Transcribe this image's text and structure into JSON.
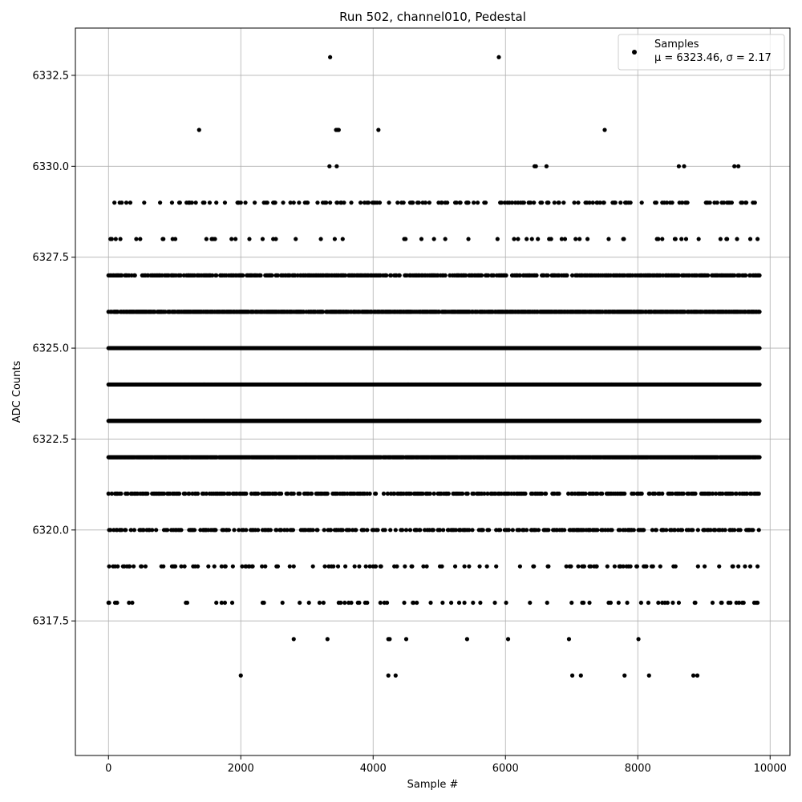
{
  "chart_data": {
    "type": "scatter",
    "title": "Run 502, channel010, Pedestal",
    "xlabel": "Sample #",
    "ylabel": "ADC Counts",
    "xlim": [
      -500,
      10300
    ],
    "ylim": [
      6313.8,
      6333.8
    ],
    "xticks": [
      0,
      2000,
      4000,
      6000,
      8000,
      10000
    ],
    "xtick_labels": [
      "0",
      "2000",
      "4000",
      "6000",
      "8000",
      "10000"
    ],
    "yticks": [
      6317.5,
      6320.0,
      6322.5,
      6325.0,
      6327.5,
      6330.0,
      6332.5
    ],
    "ytick_labels": [
      "6317.5",
      "6320.0",
      "6322.5",
      "6325.0",
      "6327.5",
      "6330.0",
      "6332.5"
    ],
    "grid": true,
    "legend_position": "top-right",
    "series": [
      {
        "name": "Samples",
        "stats_label": "μ = 6323.46, σ = 2.17",
        "color": "#000000",
        "sample_range": [
          0,
          9840
        ],
        "level_counts": [
          {
            "y": 6316,
            "x": [
              2000,
              4230,
              4340,
              7010,
              7140,
              7800,
              8170,
              8840,
              8900
            ]
          },
          {
            "y": 6317,
            "x": [
              2800,
              3310,
              4230,
              4250,
              4500,
              5420,
              6040,
              6960,
              8010
            ]
          },
          {
            "y": 6318,
            "density": 0.08
          },
          {
            "y": 6319,
            "density": 0.12
          },
          {
            "y": 6320,
            "density": 0.28
          },
          {
            "y": 6321,
            "density": 0.38
          },
          {
            "y": 6322,
            "density": 0.95
          },
          {
            "y": 6323,
            "density": 1.0
          },
          {
            "y": 6324,
            "density": 1.0
          },
          {
            "y": 6325,
            "density": 1.0
          },
          {
            "y": 6326,
            "density": 0.8
          },
          {
            "y": 6327,
            "density": 0.5
          },
          {
            "y": 6328,
            "density": 0.07
          },
          {
            "y": 6329,
            "density": 0.16
          },
          {
            "y": 6330,
            "x": [
              3340,
              3450,
              6440,
              6460,
              6620,
              8620,
              8700,
              9460,
              9520
            ]
          },
          {
            "y": 6331,
            "x": [
              1370,
              3440,
              3460,
              3480,
              4080,
              7500
            ]
          },
          {
            "y": 6332,
            "x": []
          },
          {
            "y": 6333,
            "x": [
              3350,
              5900
            ]
          }
        ]
      }
    ]
  }
}
